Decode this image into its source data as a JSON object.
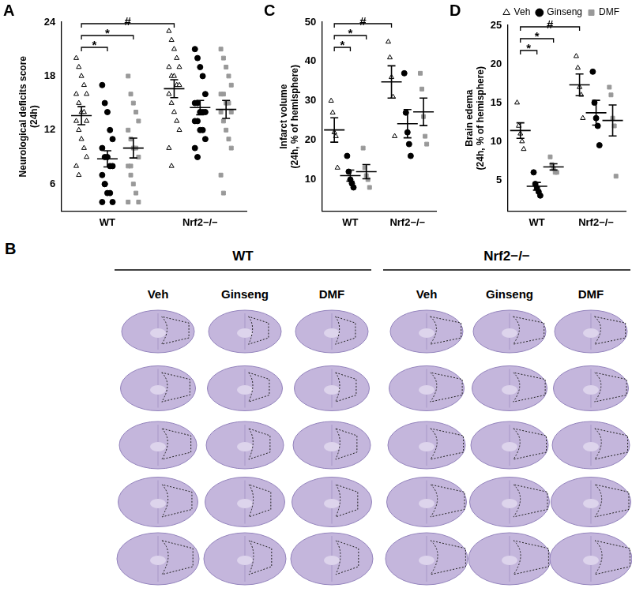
{
  "chart_data": [
    {
      "type": "scatter",
      "panel": "A",
      "y_label": [
        "Neurological deficits score",
        "(24h)"
      ],
      "categories": [
        "WT",
        "Nrf2−/−"
      ],
      "ylim": [
        3,
        24
      ],
      "yticks": [
        6,
        12,
        18,
        24
      ],
      "grid": false,
      "series": [
        {
          "name": "Veh",
          "color": "#000000",
          "marker": "open_triangle",
          "values": [
            [
              20,
              19,
              18,
              17,
              16,
              16,
              15,
              14,
              14,
              13,
              13,
              12,
              11,
              10,
              9,
              8,
              7
            ],
            [
              23,
              22,
              21,
              20,
              19,
              19,
              18,
              18,
              17,
              17,
              16,
              15,
              14,
              13,
              12,
              10,
              8
            ]
          ],
          "mean": [
            13.6,
            16.6
          ],
          "sem": [
            1.0,
            1.0
          ]
        },
        {
          "name": "Ginseng",
          "color": "#000000",
          "marker": "circle",
          "values": [
            [
              17,
              15,
              14,
              12,
              11,
              10,
              9,
              9,
              8,
              8,
              7,
              6,
              5,
              5,
              4,
              4,
              6
            ],
            [
              21,
              20,
              19,
              18,
              16,
              15,
              15,
              14,
              14,
              14,
              13,
              13,
              12,
              12,
              11,
              10,
              9
            ]
          ],
          "mean": [
            8.8,
            14.5
          ],
          "sem": [
            0.9,
            0.8
          ]
        },
        {
          "name": "DMF",
          "color": "#999999",
          "marker": "square",
          "values": [
            [
              18,
              16,
              15,
              14,
              13,
              12,
              11,
              10,
              10,
              9,
              8,
              7,
              6,
              5,
              4,
              4,
              8
            ],
            [
              21,
              20,
              19,
              18,
              17,
              16,
              16,
              15,
              15,
              14,
              14,
              13,
              12,
              11,
              10,
              7,
              5
            ]
          ],
          "mean": [
            10.0,
            14.3
          ],
          "sem": [
            1.1,
            1.0
          ]
        }
      ],
      "annotations": [
        {
          "text": "#",
          "from": {
            "category": "WT",
            "series": "Veh"
          },
          "to": {
            "category": "Nrf2−/−",
            "series": "Veh"
          }
        },
        {
          "text": "*",
          "from": {
            "category": "WT",
            "series": "Veh"
          },
          "to": {
            "category": "WT",
            "series": "DMF"
          }
        },
        {
          "text": "*",
          "from": {
            "category": "WT",
            "series": "Veh"
          },
          "to": {
            "category": "WT",
            "series": "Ginseng"
          }
        }
      ]
    },
    {
      "type": "scatter",
      "panel": "C",
      "y_label": [
        "Infarct volume",
        "(24h, % of hemisphere)"
      ],
      "categories": [
        "WT",
        "Nrf2−/−"
      ],
      "ylim": [
        2,
        50
      ],
      "yticks": [
        10,
        20,
        30,
        40,
        50
      ],
      "grid": false,
      "series": [
        {
          "name": "Veh",
          "color": "#000000",
          "marker": "open_triangle",
          "values": [
            [
              30,
              27,
              22,
              21,
              13
            ],
            [
              45,
              41,
              36,
              31,
              21
            ]
          ],
          "mean": [
            22.6,
            34.8
          ],
          "sem": [
            3.1,
            4.1
          ]
        },
        {
          "name": "Ginseng",
          "color": "#000000",
          "marker": "circle",
          "values": [
            [
              16,
              12,
              10,
              9,
              8
            ],
            [
              37,
              27,
              22,
              19,
              16
            ]
          ],
          "mean": [
            11,
            24.2
          ],
          "sem": [
            1.4,
            3.6
          ]
        },
        {
          "name": "DMF",
          "color": "#999999",
          "marker": "square",
          "values": [
            [
              18,
              13,
              11,
              10,
              8
            ],
            [
              37,
              33,
              26,
              21,
              19
            ]
          ],
          "mean": [
            12,
            27.2
          ],
          "sem": [
            1.8,
            3.5
          ]
        }
      ],
      "annotations": [
        {
          "text": "#",
          "from": {
            "category": "WT",
            "series": "Veh"
          },
          "to": {
            "category": "Nrf2−/−",
            "series": "Veh"
          }
        },
        {
          "text": "*",
          "from": {
            "category": "WT",
            "series": "Veh"
          },
          "to": {
            "category": "WT",
            "series": "DMF"
          }
        },
        {
          "text": "*",
          "from": {
            "category": "WT",
            "series": "Veh"
          },
          "to": {
            "category": "WT",
            "series": "Ginseng"
          }
        }
      ]
    },
    {
      "type": "scatter",
      "panel": "D",
      "y_label": [
        "Brain edema",
        "(24h, % of hemisphere)"
      ],
      "categories": [
        "WT",
        "Nrf2−/−"
      ],
      "ylim": [
        1,
        25
      ],
      "yticks": [
        5,
        10,
        15,
        20,
        25
      ],
      "grid": false,
      "legend": "top-right",
      "series": [
        {
          "name": "Veh",
          "color": "#000000",
          "marker": "open_triangle",
          "values": [
            [
              15,
              12,
              11,
              10,
              9
            ],
            [
              21,
              19.5,
              17,
              16,
              13
            ]
          ],
          "mean": [
            11.4,
            17.3
          ],
          "sem": [
            1.0,
            1.4
          ]
        },
        {
          "name": "Ginseng",
          "color": "#000000",
          "marker": "circle",
          "values": [
            [
              6,
              4.5,
              4,
              3.5,
              3
            ],
            [
              19,
              15,
              13,
              12,
              9.5
            ]
          ],
          "mean": [
            4.2,
            13.7
          ],
          "sem": [
            0.5,
            1.6
          ]
        },
        {
          "name": "DMF",
          "color": "#999999",
          "marker": "square",
          "values": [
            [
              8,
              7,
              6.5,
              6,
              6
            ],
            [
              17,
              16,
              13,
              12,
              5.5
            ]
          ],
          "mean": [
            6.7,
            12.7
          ],
          "sem": [
            0.4,
            2.0
          ]
        }
      ],
      "annotations": [
        {
          "text": "#",
          "from": {
            "category": "WT",
            "series": "Veh"
          },
          "to": {
            "category": "Nrf2−/−",
            "series": "Veh"
          }
        },
        {
          "text": "*",
          "from": {
            "category": "WT",
            "series": "Veh"
          },
          "to": {
            "category": "WT",
            "series": "DMF"
          }
        },
        {
          "text": "*",
          "from": {
            "category": "WT",
            "series": "Veh"
          },
          "to": {
            "category": "WT",
            "series": "Ginseng"
          }
        }
      ]
    }
  ],
  "panel_b": {
    "label": "B",
    "groups": [
      {
        "name": "WT",
        "columns": [
          "Veh",
          "Ginseng",
          "DMF"
        ]
      },
      {
        "name": "Nrf2−/−",
        "columns": [
          "Veh",
          "Ginseng",
          "DMF"
        ]
      }
    ]
  }
}
